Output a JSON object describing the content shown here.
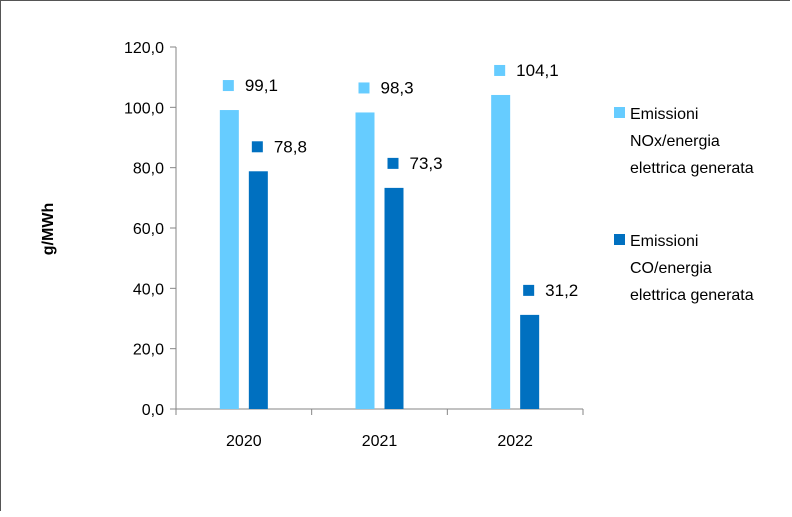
{
  "chart_data": {
    "type": "bar",
    "title": "",
    "xlabel": "",
    "ylabel": "g/MWh",
    "categories": [
      "2020",
      "2021",
      "2022"
    ],
    "ylim": [
      0,
      120
    ],
    "ytick_step": 20,
    "ytick_labels": [
      "0,0",
      "20,0",
      "40,0",
      "60,0",
      "80,0",
      "100,0",
      "120,0"
    ],
    "grid": false,
    "legend_position": "right",
    "series": [
      {
        "name_lines": [
          "Emissioni",
          "NOx/energia",
          "elettrica generata"
        ],
        "color": "#66CCFF",
        "values": [
          99.1,
          98.3,
          104.1
        ],
        "labels": [
          "99,1",
          "98,3",
          "104,1"
        ]
      },
      {
        "name_lines": [
          "Emissioni",
          "CO/energia",
          "elettrica generata"
        ],
        "color": "#0070C0",
        "values": [
          78.8,
          73.3,
          31.2
        ],
        "labels": [
          "78,8",
          "73,3",
          "31,2"
        ]
      }
    ]
  }
}
